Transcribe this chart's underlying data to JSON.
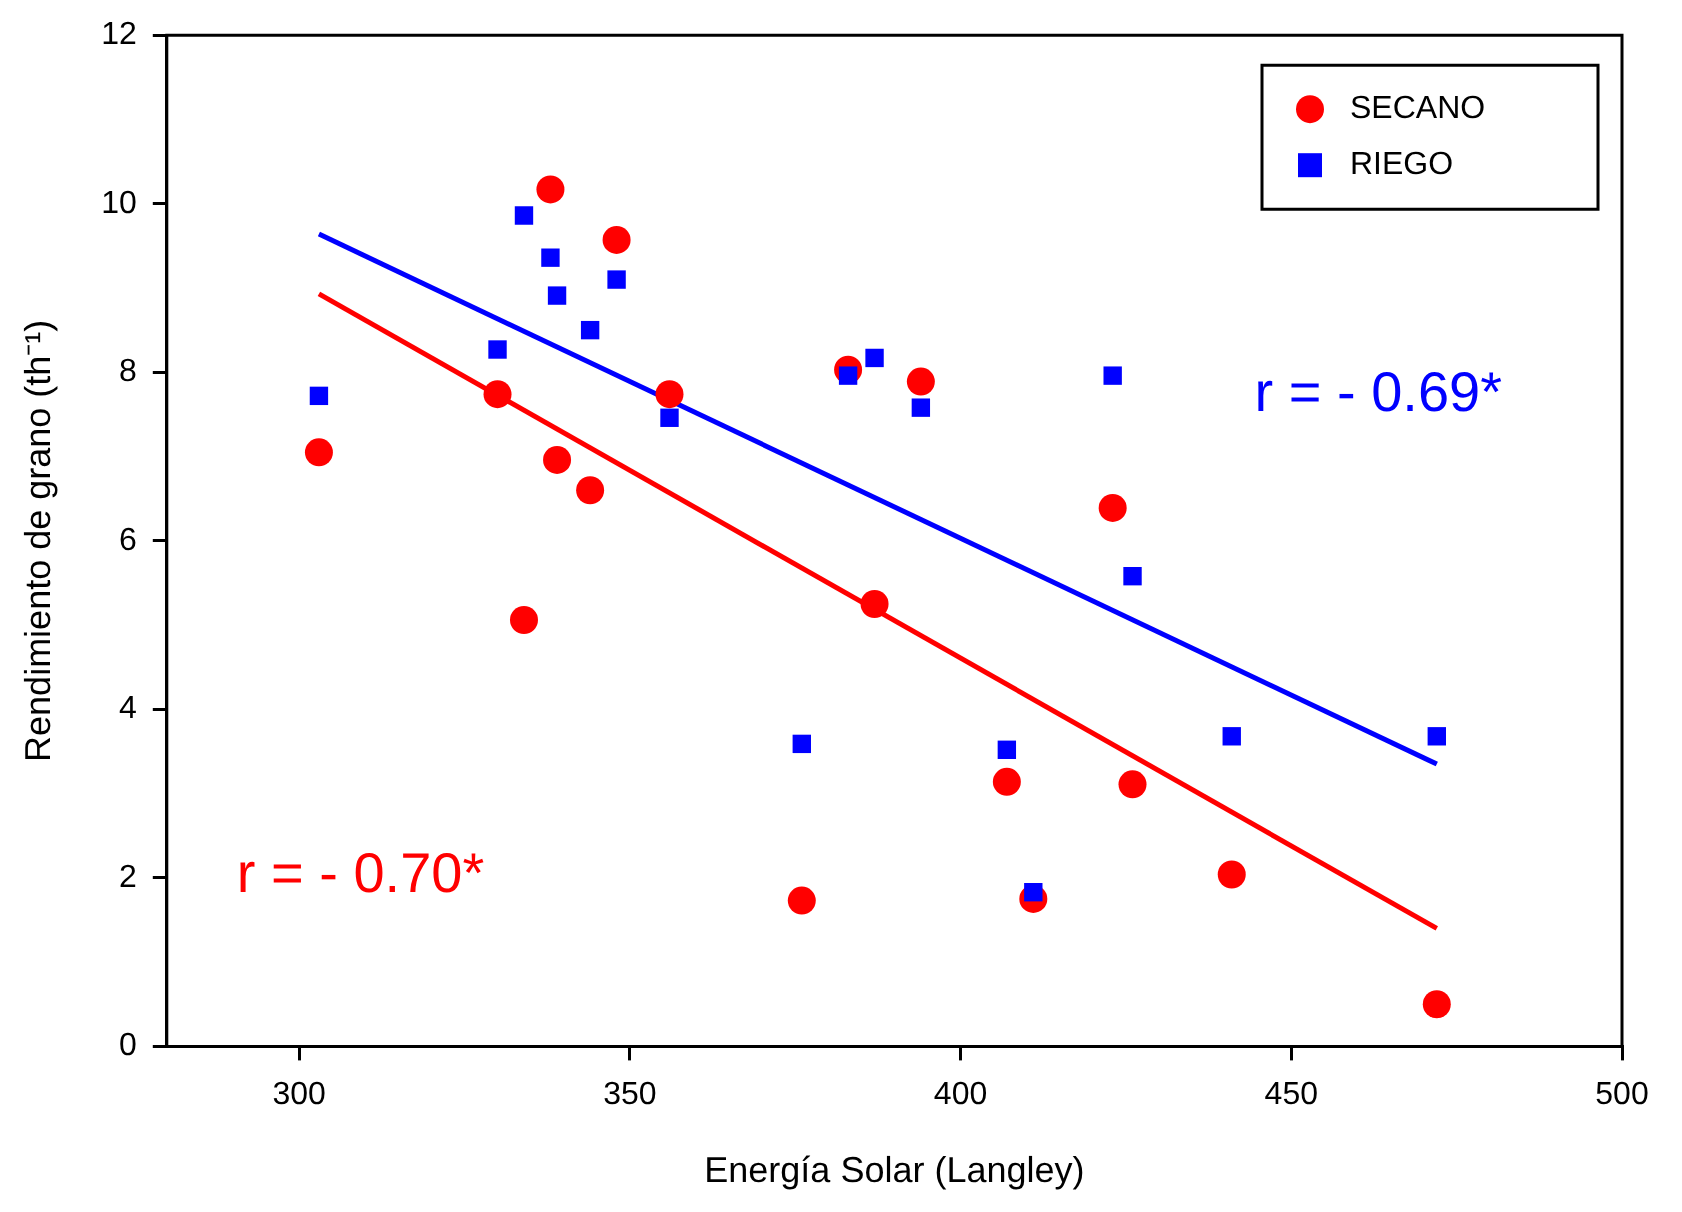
{
  "chart_data": {
    "type": "scatter",
    "xlabel": "Energía Solar (Langley)",
    "ylabel": "Rendimiento de grano (th⁻¹)",
    "xlim": [
      280,
      500
    ],
    "xticks": [
      300,
      350,
      400,
      450,
      500
    ],
    "ylim": [
      0,
      12
    ],
    "yticks": [
      0,
      2,
      4,
      6,
      8,
      10,
      12
    ],
    "grid": false,
    "legend": "top right",
    "series": [
      {
        "name": "SECANO",
        "color": "#ff0000",
        "marker": "circle",
        "x": [
          303,
          330,
          338,
          334,
          339,
          344,
          348,
          356,
          383,
          387,
          394,
          376,
          407,
          411,
          423,
          426,
          441,
          472
        ],
        "values": [
          7.05,
          7.74,
          10.17,
          5.06,
          6.96,
          6.6,
          9.57,
          7.74,
          8.03,
          5.25,
          7.89,
          1.73,
          3.14,
          1.75,
          6.39,
          3.11,
          2.04,
          0.5
        ]
      },
      {
        "name": "RIEGO",
        "color": "#0000ff",
        "marker": "square",
        "x": [
          303,
          330,
          334,
          338,
          339,
          344,
          348,
          356,
          376,
          383,
          387,
          394,
          407,
          411,
          423,
          426,
          441,
          472
        ],
        "values": [
          7.72,
          8.27,
          9.86,
          9.36,
          8.91,
          8.5,
          9.1,
          7.46,
          3.59,
          7.96,
          8.17,
          7.58,
          3.52,
          1.83,
          7.96,
          5.58,
          3.68,
          3.68
        ]
      },
      {
        "type": "line",
        "color": "#ff0000",
        "marker": "none",
        "x": [
          303,
          472
        ],
        "values": [
          8.93,
          1.4
        ]
      },
      {
        "type": "line",
        "color": "#0000ff",
        "marker": "none",
        "x": [
          303,
          472
        ],
        "values": [
          9.64,
          3.35
        ]
      }
    ],
    "annotations": [
      "r = - 0.70*",
      "r = - 0.69*"
    ]
  }
}
